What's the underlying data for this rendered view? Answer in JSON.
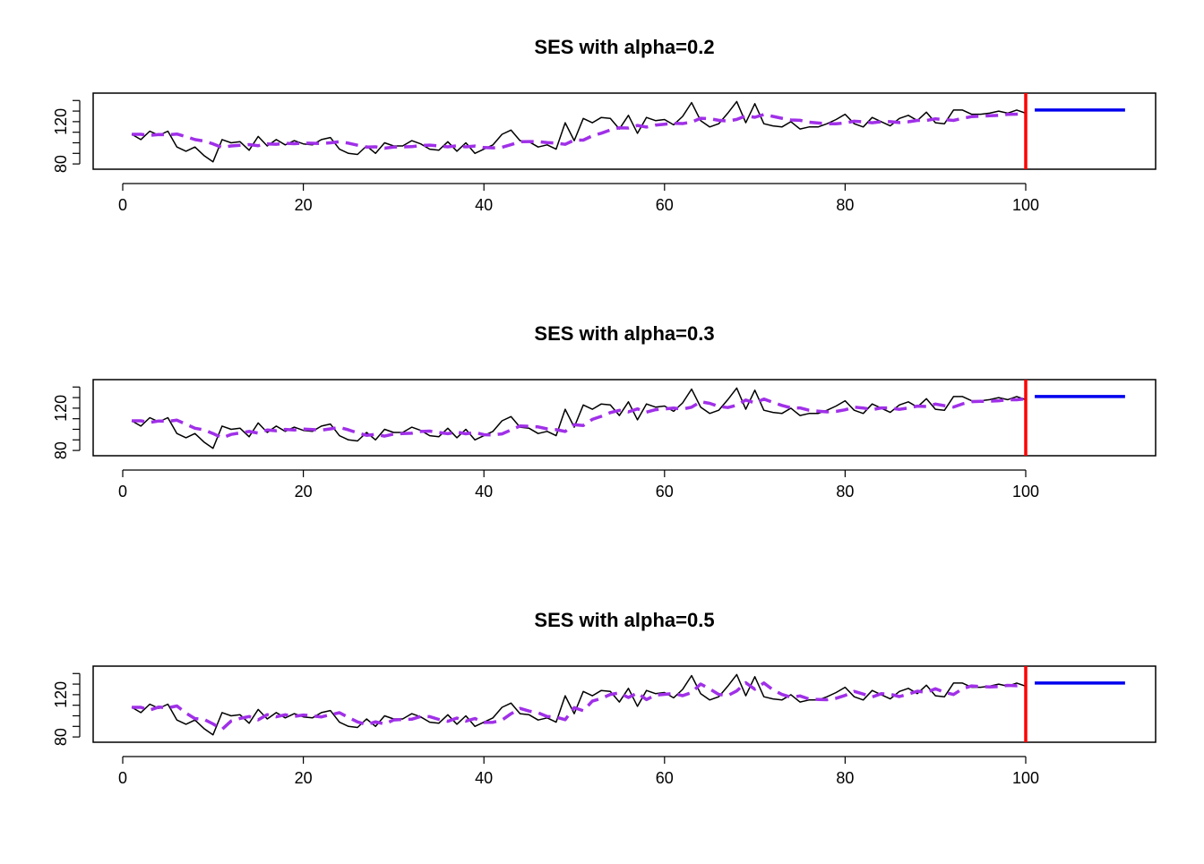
{
  "chart_data": [
    {
      "type": "line",
      "title": "SES with alpha=0.2",
      "alpha": 0.2,
      "xlim": [
        0,
        113
      ],
      "ylim": [
        75,
        147
      ],
      "x_ticks": [
        "0",
        "20",
        "40",
        "60",
        "80",
        "100"
      ],
      "y_ticks": [
        "80",
        "120"
      ],
      "grid": false,
      "vline_x": 100,
      "forecast": {
        "x": [
          101,
          111
        ],
        "value": 131
      },
      "colors": {
        "observed": "#000000",
        "fitted": "#a030e8",
        "forecast": "#0000ee",
        "cutoff": "#ff0000"
      }
    },
    {
      "type": "line",
      "title": "SES with alpha=0.3",
      "alpha": 0.3,
      "xlim": [
        0,
        113
      ],
      "ylim": [
        75,
        147
      ],
      "x_ticks": [
        "0",
        "20",
        "40",
        "60",
        "80",
        "100"
      ],
      "y_ticks": [
        "80",
        "120"
      ],
      "grid": false,
      "vline_x": 100,
      "forecast": {
        "x": [
          101,
          111
        ],
        "value": 131
      },
      "colors": {
        "observed": "#000000",
        "fitted": "#a030e8",
        "forecast": "#0000ee",
        "cutoff": "#ff0000"
      }
    },
    {
      "type": "line",
      "title": "SES with alpha=0.5",
      "alpha": 0.5,
      "xlim": [
        0,
        113
      ],
      "ylim": [
        75,
        147
      ],
      "x_ticks": [
        "0",
        "20",
        "40",
        "60",
        "80",
        "100"
      ],
      "y_ticks": [
        "80",
        "120"
      ],
      "grid": false,
      "vline_x": 100,
      "forecast": {
        "x": [
          101,
          111
        ],
        "value": 131
      },
      "colors": {
        "observed": "#000000",
        "fitted": "#a030e8",
        "forecast": "#0000ee",
        "cutoff": "#ff0000"
      }
    }
  ],
  "observed_series": {
    "x": [
      1,
      2,
      3,
      4,
      5,
      6,
      7,
      8,
      9,
      10,
      11,
      12,
      13,
      14,
      15,
      16,
      17,
      18,
      19,
      20,
      21,
      22,
      23,
      24,
      25,
      26,
      27,
      28,
      29,
      30,
      31,
      32,
      33,
      34,
      35,
      36,
      37,
      38,
      39,
      40,
      41,
      42,
      43,
      44,
      45,
      46,
      47,
      48,
      49,
      50,
      51,
      52,
      53,
      54,
      55,
      56,
      57,
      58,
      59,
      60,
      61,
      62,
      63,
      64,
      65,
      66,
      67,
      68,
      69,
      70,
      71,
      72,
      73,
      74,
      75,
      76,
      77,
      78,
      79,
      80,
      81,
      82,
      83,
      84,
      85,
      86,
      87,
      88,
      89,
      90,
      91,
      92,
      93,
      94,
      95,
      96,
      97,
      98,
      99,
      100
    ],
    "y": [
      108,
      103,
      111,
      107,
      111,
      96,
      92,
      96,
      88,
      82,
      103,
      100,
      101,
      93,
      106,
      97,
      103,
      98,
      102,
      99,
      98,
      103,
      105,
      94,
      90,
      89,
      97,
      90,
      100,
      97,
      97,
      102,
      99,
      94,
      93,
      101,
      92,
      100,
      90,
      94,
      98,
      108,
      112,
      102,
      101,
      96,
      98,
      94,
      119,
      102,
      123,
      119,
      124,
      123,
      113,
      126,
      109,
      124,
      121,
      122,
      117,
      125,
      138,
      121,
      115,
      118,
      128,
      139,
      119,
      137,
      118,
      116,
      115,
      120,
      113,
      115,
      115,
      118,
      122,
      127,
      118,
      115,
      124,
      120,
      116,
      123,
      126,
      121,
      129,
      119,
      118,
      131,
      131,
      127,
      127,
      128,
      130,
      128,
      131,
      128
    ]
  }
}
